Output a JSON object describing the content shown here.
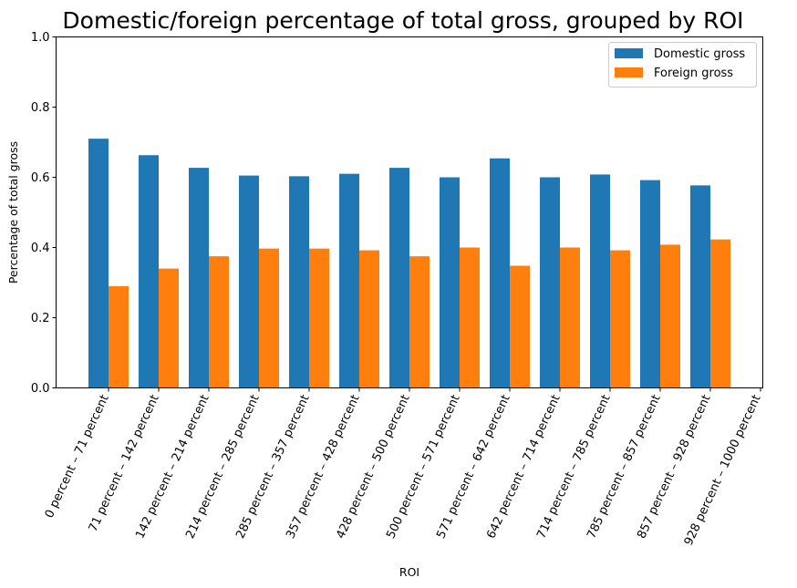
{
  "chart_data": {
    "type": "bar",
    "title": "Domestic/foreign percentage of total gross, grouped by ROI",
    "xlabel": "ROI",
    "ylabel": "Percentage of total gross",
    "ylim": [
      0,
      1.0
    ],
    "yticks": [
      "0.0",
      "0.2",
      "0.4",
      "0.6",
      "0.8",
      "1.0"
    ],
    "grid": false,
    "legend_position": "top-right",
    "categories": [
      "0 percent – 71 percent",
      "71 percent – 142 percent",
      "142 percent – 214 percent",
      "214 percent – 285 percent",
      "285 percent – 357 percent",
      "357 percent – 428 percent",
      "428 percent – 500 percent",
      "500 percent – 571 percent",
      "571 percent – 642 percent",
      "642 percent – 714 percent",
      "714 percent – 785 percent",
      "785 percent – 857 percent",
      "857 percent – 928 percent",
      "928 percent – 1000 percent"
    ],
    "series": [
      {
        "name": "Domestic gross",
        "color": "#1f77b4",
        "values": [
          0.71,
          0.663,
          0.627,
          0.605,
          0.603,
          0.61,
          0.627,
          0.6,
          0.654,
          0.6,
          0.608,
          0.592,
          0.577,
          null
        ]
      },
      {
        "name": "Foreign gross",
        "color": "#ff7f0e",
        "values": [
          0.29,
          0.34,
          0.375,
          0.397,
          0.397,
          0.392,
          0.375,
          0.4,
          0.348,
          0.4,
          0.392,
          0.408,
          0.423,
          null
        ]
      }
    ]
  }
}
